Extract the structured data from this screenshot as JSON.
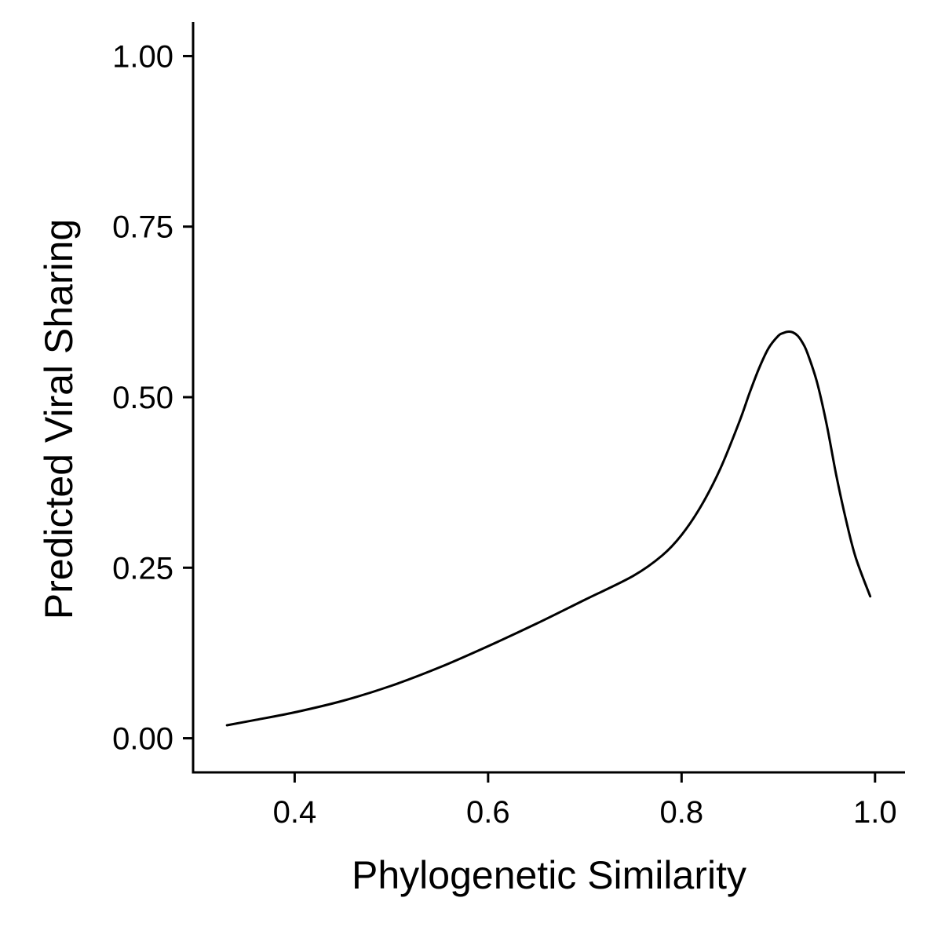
{
  "chart_data": {
    "type": "line",
    "title": "",
    "xlabel": "Phylogenetic Similarity",
    "ylabel": "Predicted Viral Sharing",
    "xlim": [
      0.295,
      1.031
    ],
    "ylim": [
      -0.05,
      1.05
    ],
    "x_ticks": [
      {
        "value": 0.4,
        "label": "0.4"
      },
      {
        "value": 0.6,
        "label": "0.6"
      },
      {
        "value": 0.8,
        "label": "0.8"
      },
      {
        "value": 1.0,
        "label": "1.0"
      }
    ],
    "y_ticks": [
      {
        "value": 0.0,
        "label": "0.00"
      },
      {
        "value": 0.25,
        "label": "0.25"
      },
      {
        "value": 0.5,
        "label": "0.50"
      },
      {
        "value": 0.75,
        "label": "0.75"
      },
      {
        "value": 1.0,
        "label": "1.00"
      }
    ],
    "grid": false,
    "legend": "none",
    "line_color": "#000000",
    "series": [
      {
        "x": [
          0.33,
          0.36,
          0.4,
          0.45,
          0.5,
          0.55,
          0.6,
          0.65,
          0.7,
          0.75,
          0.78,
          0.8,
          0.82,
          0.84,
          0.86,
          0.87,
          0.88,
          0.89,
          0.9,
          0.905,
          0.91,
          0.915,
          0.92,
          0.925,
          0.93,
          0.94,
          0.95,
          0.96,
          0.97,
          0.98,
          0.995
        ],
        "y": [
          0.019,
          0.027,
          0.038,
          0.055,
          0.077,
          0.104,
          0.135,
          0.168,
          0.203,
          0.238,
          0.268,
          0.298,
          0.34,
          0.395,
          0.465,
          0.505,
          0.542,
          0.572,
          0.59,
          0.594,
          0.596,
          0.595,
          0.59,
          0.58,
          0.565,
          0.522,
          0.46,
          0.385,
          0.32,
          0.265,
          0.208
        ]
      }
    ]
  }
}
